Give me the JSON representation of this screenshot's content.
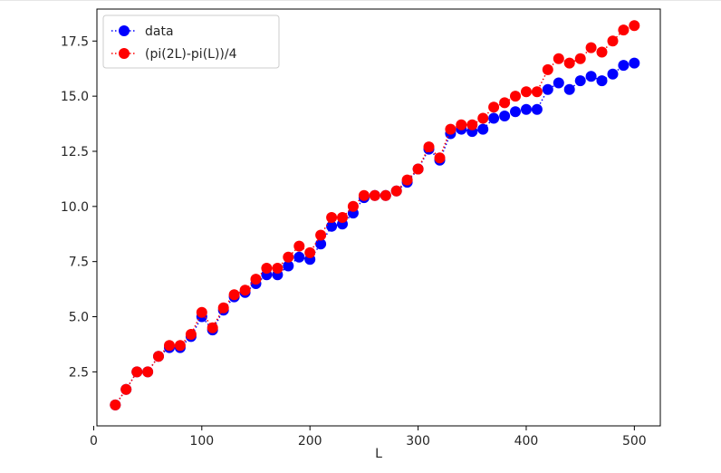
{
  "chart_data": {
    "type": "scatter",
    "title": "",
    "xlabel": "L",
    "ylabel": "",
    "xlim": [
      3,
      524
    ],
    "ylim": [
      0.05,
      18.95
    ],
    "xticks": [
      0,
      100,
      200,
      300,
      400,
      500
    ],
    "xtick_labels": [
      "0",
      "100",
      "200",
      "300",
      "400",
      "500"
    ],
    "yticks": [
      2.5,
      5.0,
      7.5,
      10.0,
      12.5,
      15.0,
      17.5
    ],
    "ytick_labels": [
      "2.5",
      "5.0",
      "7.5",
      "10.0",
      "12.5",
      "15.0",
      "17.5"
    ],
    "grid": false,
    "legend_position": "top-left",
    "x": [
      20,
      30,
      40,
      50,
      60,
      70,
      80,
      90,
      100,
      110,
      120,
      130,
      140,
      150,
      160,
      170,
      180,
      190,
      200,
      210,
      220,
      230,
      240,
      250,
      260,
      270,
      280,
      290,
      300,
      310,
      320,
      330,
      340,
      350,
      360,
      370,
      380,
      390,
      400,
      410,
      420,
      430,
      440,
      450,
      460,
      470,
      480,
      490,
      500
    ],
    "series": [
      {
        "name": "data",
        "color": "#0000ff",
        "line_style": "dotted",
        "values": [
          1.0,
          1.7,
          2.5,
          2.5,
          3.2,
          3.6,
          3.6,
          4.1,
          5.0,
          4.4,
          5.3,
          5.9,
          6.1,
          6.5,
          6.9,
          6.9,
          7.3,
          7.7,
          7.6,
          8.3,
          9.1,
          9.2,
          9.7,
          10.4,
          10.5,
          10.5,
          10.7,
          11.1,
          11.7,
          12.6,
          12.1,
          13.3,
          13.5,
          13.4,
          13.5,
          14.0,
          14.1,
          14.3,
          14.4,
          14.4,
          15.3,
          15.6,
          15.3,
          15.7,
          15.9,
          15.7,
          16.0,
          16.4,
          16.5
        ]
      },
      {
        "name": "(pi(2L)-pi(L))/4",
        "color": "#ff0000",
        "line_style": "dotted",
        "values": [
          1.0,
          1.7,
          2.5,
          2.5,
          3.2,
          3.7,
          3.7,
          4.2,
          5.2,
          4.5,
          5.4,
          6.0,
          6.2,
          6.7,
          7.2,
          7.2,
          7.7,
          8.2,
          7.9,
          8.7,
          9.5,
          9.5,
          10.0,
          10.5,
          10.5,
          10.5,
          10.7,
          11.2,
          11.7,
          12.7,
          12.2,
          13.5,
          13.7,
          13.7,
          14.0,
          14.5,
          14.7,
          15.0,
          15.2,
          15.2,
          16.2,
          16.7,
          16.5,
          16.7,
          17.2,
          17.0,
          17.5,
          18.0,
          18.2
        ]
      }
    ]
  }
}
